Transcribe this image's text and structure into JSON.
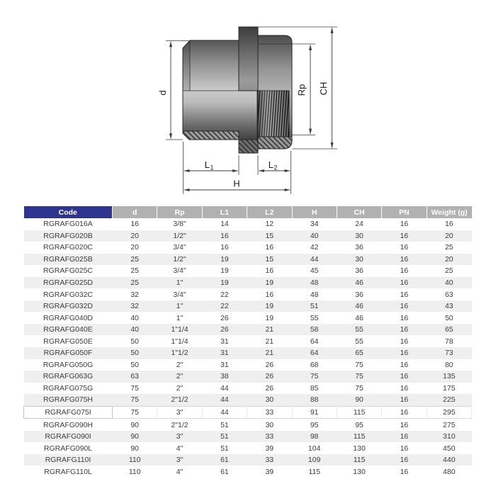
{
  "page": {
    "background": "#ffffff"
  },
  "diagram": {
    "dim_labels": {
      "d": "d",
      "rp": "Rp",
      "ch": "CH",
      "l1_main": "L",
      "l1_sub": "1",
      "l2_main": "L",
      "l2_sub": "2",
      "h": "H"
    }
  },
  "table": {
    "columns": [
      "Code",
      "d",
      "Rp",
      "L1",
      "L2",
      "H",
      "CH",
      "PN",
      "Weight (g)"
    ],
    "highlighted_code": "RGRAFG075I",
    "rows": [
      [
        "RGRAFG016A",
        "16",
        "3/8\"",
        "14",
        "12",
        "34",
        "24",
        "16",
        "16"
      ],
      [
        "RGRAFG020B",
        "20",
        "1/2\"",
        "16",
        "15",
        "40",
        "30",
        "16",
        "20"
      ],
      [
        "RGRAFG020C",
        "20",
        "3/4\"",
        "16",
        "16",
        "42",
        "36",
        "16",
        "25"
      ],
      [
        "RGRAFG025B",
        "25",
        "1/2\"",
        "19",
        "15",
        "44",
        "30",
        "16",
        "20"
      ],
      [
        "RGRAFG025C",
        "25",
        "3/4\"",
        "19",
        "16",
        "45",
        "36",
        "16",
        "25"
      ],
      [
        "RGRAFG025D",
        "25",
        "1\"",
        "19",
        "19",
        "48",
        "46",
        "16",
        "40"
      ],
      [
        "RGRAFG032C",
        "32",
        "3/4\"",
        "22",
        "16",
        "48",
        "36",
        "16",
        "63"
      ],
      [
        "RGRAFG032D",
        "32",
        "1\"",
        "22",
        "19",
        "51",
        "46",
        "16",
        "43"
      ],
      [
        "RGRAFG040D",
        "40",
        "1\"",
        "26",
        "19",
        "55",
        "46",
        "16",
        "50"
      ],
      [
        "RGRAFG040E",
        "40",
        "1\"1/4",
        "26",
        "21",
        "58",
        "55",
        "16",
        "65"
      ],
      [
        "RGRAFG050E",
        "50",
        "1\"1/4",
        "31",
        "21",
        "64",
        "55",
        "16",
        "78"
      ],
      [
        "RGRAFG050F",
        "50",
        "1\"1/2",
        "31",
        "21",
        "64",
        "65",
        "16",
        "73"
      ],
      [
        "RGRAFG050G",
        "50",
        "2\"",
        "31",
        "26",
        "68",
        "75",
        "16",
        "80"
      ],
      [
        "RGRAFG063G",
        "63",
        "2\"",
        "38",
        "26",
        "75",
        "75",
        "16",
        "135"
      ],
      [
        "RGRAFG075G",
        "75",
        "2\"",
        "44",
        "26",
        "85",
        "75",
        "16",
        "175"
      ],
      [
        "RGRAFG075H",
        "75",
        "2\"1/2",
        "44",
        "30",
        "88",
        "90",
        "16",
        "225"
      ],
      [
        "RGRAFG075I",
        "75",
        "3\"",
        "44",
        "33",
        "91",
        "115",
        "16",
        "295"
      ],
      [
        "RGRAFG090H",
        "90",
        "2\"1/2",
        "51",
        "30",
        "95",
        "95",
        "16",
        "275"
      ],
      [
        "RGRAFG090I",
        "90",
        "3\"",
        "51",
        "33",
        "98",
        "115",
        "16",
        "310"
      ],
      [
        "RGRAFG090L",
        "90",
        "4\"",
        "51",
        "39",
        "104",
        "130",
        "16",
        "450"
      ],
      [
        "RGRAFG110I",
        "110",
        "3\"",
        "61",
        "33",
        "109",
        "115",
        "16",
        "440"
      ],
      [
        "RGRAFG110L",
        "110",
        "4\"",
        "61",
        "39",
        "115",
        "130",
        "16",
        "480"
      ]
    ]
  },
  "colors": {
    "code_header_bg": "#2e3591",
    "column_header_bg": "#b1b1b1",
    "header_text": "#ffffff",
    "row_stripe": "#efefef",
    "body_text": "#3c3c3c",
    "drawing_line": "#3d3d3d"
  }
}
